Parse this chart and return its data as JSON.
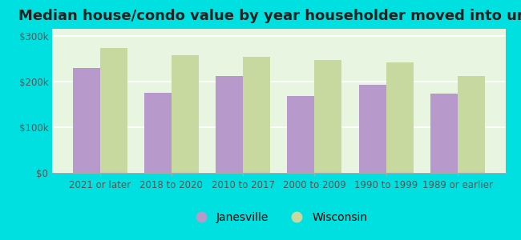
{
  "title": "Median house/condo value by year householder moved into unit",
  "categories": [
    "2021 or later",
    "2018 to 2020",
    "2010 to 2017",
    "2000 to 2009",
    "1990 to 1999",
    "1989 or earlier"
  ],
  "janesville": [
    230000,
    175000,
    212000,
    168000,
    193000,
    173000
  ],
  "wisconsin": [
    273000,
    258000,
    253000,
    247000,
    242000,
    212000
  ],
  "janesville_color": "#b899cc",
  "wisconsin_color": "#c8d9a0",
  "background_outer": "#00e0e0",
  "background_inner": "#e8f5e0",
  "yticks": [
    0,
    100000,
    200000,
    300000
  ],
  "ylim": [
    0,
    315000
  ],
  "legend_labels": [
    "Janesville",
    "Wisconsin"
  ],
  "title_fontsize": 13,
  "tick_fontsize": 8.5,
  "legend_fontsize": 10,
  "bar_width": 0.38
}
